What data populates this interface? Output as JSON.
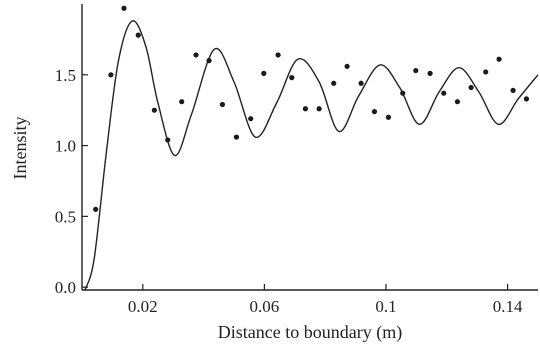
{
  "chart_data": {
    "type": "scatter",
    "title": "",
    "xlabel": "Distance to boundary (m)",
    "ylabel": "Intensity",
    "xlim": [
      0.0,
      0.15
    ],
    "ylim": [
      -0.02,
      2.0
    ],
    "xticks": [
      {
        "value": 0.02,
        "label": "0.02"
      },
      {
        "value": 0.06,
        "label": "0.06"
      },
      {
        "value": 0.1,
        "label": "0.1"
      },
      {
        "value": 0.14,
        "label": "0.14"
      }
    ],
    "yticks": [
      {
        "value": 0.0,
        "label": "0.0"
      },
      {
        "value": 0.5,
        "label": "0.5"
      },
      {
        "value": 1.0,
        "label": "1.0"
      },
      {
        "value": 1.5,
        "label": "1.5"
      }
    ],
    "grid": false,
    "legend": "none",
    "series": [
      {
        "kind": "points",
        "x": [
          0.0045,
          0.0095,
          0.0138,
          0.0185,
          0.0238,
          0.0282,
          0.0328,
          0.0375,
          0.0418,
          0.0462,
          0.0508,
          0.0555,
          0.0598,
          0.0645,
          0.069,
          0.0735,
          0.078,
          0.0828,
          0.0872,
          0.0918,
          0.0962,
          0.1008,
          0.1055,
          0.1098,
          0.1145,
          0.119,
          0.1235,
          0.128,
          0.1328,
          0.1372,
          0.1418,
          0.1462
        ],
        "y": [
          0.55,
          1.5,
          1.97,
          1.78,
          1.25,
          1.04,
          1.31,
          1.64,
          1.6,
          1.29,
          1.06,
          1.19,
          1.51,
          1.64,
          1.48,
          1.26,
          1.26,
          1.44,
          1.56,
          1.44,
          1.24,
          1.2,
          1.37,
          1.53,
          1.51,
          1.37,
          1.31,
          1.41,
          1.52,
          1.61,
          1.39,
          1.33
        ]
      },
      {
        "kind": "fit-curve",
        "x": [
          0.001,
          0.004,
          0.008,
          0.012,
          0.0165,
          0.021,
          0.025,
          0.0305,
          0.036,
          0.0435,
          0.05,
          0.057,
          0.064,
          0.071,
          0.078,
          0.0845,
          0.091,
          0.098,
          0.1045,
          0.111,
          0.1175,
          0.124,
          0.1305,
          0.137,
          0.1435,
          0.15
        ],
        "y": [
          -0.02,
          0.2,
          0.95,
          1.6,
          1.88,
          1.7,
          1.3,
          0.93,
          1.22,
          1.68,
          1.45,
          1.06,
          1.3,
          1.61,
          1.45,
          1.1,
          1.35,
          1.57,
          1.41,
          1.15,
          1.38,
          1.55,
          1.38,
          1.15,
          1.33,
          1.5
        ]
      }
    ]
  }
}
